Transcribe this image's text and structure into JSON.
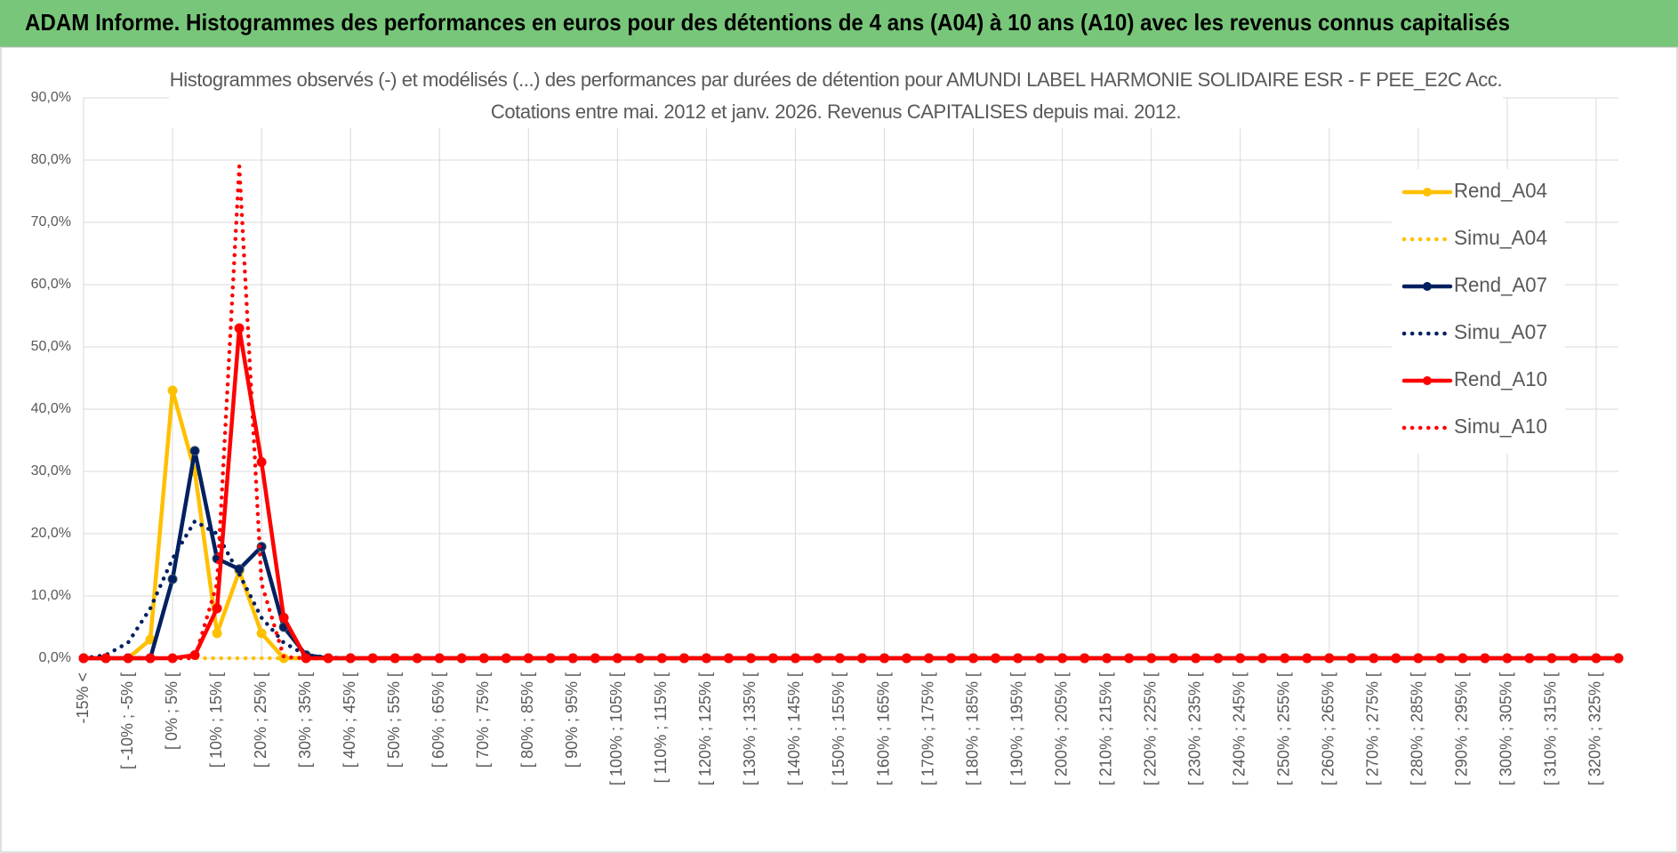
{
  "header": {
    "title": "ADAM Informe. Histogrammes des performances en euros pour des détentions de 4 ans (A04) à 10 ans (A10) avec les revenus connus capitalisés"
  },
  "chart_data": {
    "type": "line",
    "title": "Histogrammes observés (-) et modélisés (...) des performances par durées de détention pour AMUNDI LABEL HARMONIE SOLIDAIRE ESR - F PEE_E2C Acc.",
    "subtitle": "Cotations entre mai. 2012 et janv. 2026. Revenus CAPITALISES depuis mai. 2012.",
    "categories": [
      "-15% <",
      null,
      "[ -10% ; -5% [",
      null,
      "[ 0% ; 5% [",
      null,
      "[ 10% ; 15% [",
      null,
      "[ 20% ; 25% [",
      null,
      "[ 30% ; 35% [",
      null,
      "[ 40% ; 45% [",
      null,
      "[ 50% ; 55% [",
      null,
      "[ 60% ; 65% [",
      null,
      "[ 70% ; 75% [",
      null,
      "[ 80% ; 85% [",
      null,
      "[ 90% ; 95% [",
      null,
      "[ 100% ; 105% [",
      null,
      "[ 110% ; 115% [",
      null,
      "[ 120% ; 125% [",
      null,
      "[ 130% ; 135% [",
      null,
      "[ 140% ; 145% [",
      null,
      "[ 150% ; 155% [",
      null,
      "[ 160% ; 165% [",
      null,
      "[ 170% ; 175% [",
      null,
      "[ 180% ; 185% [",
      null,
      "[ 190% ; 195% [",
      null,
      "[ 200% ; 205% [",
      null,
      "[ 210% ; 215% [",
      null,
      "[ 220% ; 225% [",
      null,
      "[ 230% ; 235% [",
      null,
      "[ 240% ; 245% [",
      null,
      "[ 250% ; 255% [",
      null,
      "[ 260% ; 265% [",
      null,
      "[ 270% ; 275% [",
      null,
      "[ 280% ; 285% [",
      null,
      "[ 290% ; 295% [",
      null,
      "[ 300% ; 305% [",
      null,
      "[ 310% ; 315% [",
      null,
      "[ 320% ; 325% [",
      null
    ],
    "series": [
      {
        "name": "Rend_A04",
        "color": "#ffc000",
        "style": "solid",
        "values": [
          0,
          0,
          0,
          3,
          43,
          30,
          4,
          14,
          4,
          0,
          0,
          0,
          0,
          0,
          0,
          0,
          0,
          0,
          0,
          0,
          0,
          0,
          0,
          0,
          0,
          0,
          0,
          0,
          0,
          0,
          0,
          0,
          0,
          0,
          0,
          0,
          0,
          0,
          0,
          0,
          0,
          0,
          0,
          0,
          0,
          0,
          0,
          0,
          0,
          0,
          0,
          0,
          0,
          0,
          0,
          0,
          0,
          0,
          0,
          0,
          0,
          0,
          0,
          0,
          0,
          0,
          0,
          0,
          0,
          0
        ]
      },
      {
        "name": "Simu_A04",
        "color": "#ffc000",
        "style": "dotted",
        "values": [
          0,
          0,
          0,
          0,
          0,
          0,
          0,
          0,
          0,
          0,
          0,
          0,
          0,
          0,
          0,
          0,
          0,
          0,
          0,
          0,
          0,
          0,
          0,
          0,
          0,
          0,
          0,
          0,
          0,
          0,
          0,
          0,
          0,
          0,
          0,
          0,
          0,
          0,
          0,
          0,
          0,
          0,
          0,
          0,
          0,
          0,
          0,
          0,
          0,
          0,
          0,
          0,
          0,
          0,
          0,
          0,
          0,
          0,
          0,
          0,
          0,
          0,
          0,
          0,
          0,
          0,
          0,
          0,
          0,
          0
        ]
      },
      {
        "name": "Rend_A07",
        "color": "#002060",
        "style": "solid",
        "values": [
          0,
          0,
          0,
          0,
          12.7,
          33.3,
          16,
          14.3,
          17.9,
          5,
          0.5,
          0,
          0,
          0,
          0,
          0,
          0,
          0,
          0,
          0,
          0,
          0,
          0,
          0,
          0,
          0,
          0,
          0,
          0,
          0,
          0,
          0,
          0,
          0,
          0,
          0,
          0,
          0,
          0,
          0,
          0,
          0,
          0,
          0,
          0,
          0,
          0,
          0,
          0,
          0,
          0,
          0,
          0,
          0,
          0,
          0,
          0,
          0,
          0,
          0,
          0,
          0,
          0,
          0,
          0,
          0,
          0,
          0,
          0,
          0
        ]
      },
      {
        "name": "Simu_A07",
        "color": "#002060",
        "style": "dotted",
        "values": [
          0,
          0.5,
          2.5,
          8,
          16,
          22,
          20,
          13.5,
          6.5,
          2.5,
          0.5,
          0.1,
          0,
          0,
          0,
          0,
          0,
          0,
          0,
          0,
          0,
          0,
          0,
          0,
          0,
          0,
          0,
          0,
          0,
          0,
          0,
          0,
          0,
          0,
          0,
          0,
          0,
          0,
          0,
          0,
          0,
          0,
          0,
          0,
          0,
          0,
          0,
          0,
          0,
          0,
          0,
          0,
          0,
          0,
          0,
          0,
          0,
          0,
          0,
          0,
          0,
          0,
          0,
          0,
          0,
          0,
          0,
          0,
          0,
          0
        ]
      },
      {
        "name": "Rend_A10",
        "color": "#ff0000",
        "style": "solid",
        "values": [
          0,
          0,
          0,
          0,
          0,
          0.5,
          8,
          53,
          31.5,
          6.5,
          0,
          0,
          0,
          0,
          0,
          0,
          0,
          0,
          0,
          0,
          0,
          0,
          0,
          0,
          0,
          0,
          0,
          0,
          0,
          0,
          0,
          0,
          0,
          0,
          0,
          0,
          0,
          0,
          0,
          0,
          0,
          0,
          0,
          0,
          0,
          0,
          0,
          0,
          0,
          0,
          0,
          0,
          0,
          0,
          0,
          0,
          0,
          0,
          0,
          0,
          0,
          0,
          0,
          0,
          0,
          0,
          0,
          0,
          0,
          0
        ]
      },
      {
        "name": "Simu_A10",
        "color": "#ff0000",
        "style": "dotted",
        "values": [
          0,
          0,
          0,
          0,
          0,
          0,
          12,
          79,
          12,
          0.2,
          0,
          0,
          0,
          0,
          0,
          0,
          0,
          0,
          0,
          0,
          0,
          0,
          0,
          0,
          0,
          0,
          0,
          0,
          0,
          0,
          0,
          0,
          0,
          0,
          0,
          0,
          0,
          0,
          0,
          0,
          0,
          0,
          0,
          0,
          0,
          0,
          0,
          0,
          0,
          0,
          0,
          0,
          0,
          0,
          0,
          0,
          0,
          0,
          0,
          0,
          0,
          0,
          0,
          0,
          0,
          0,
          0,
          0,
          0,
          0
        ]
      }
    ],
    "ylim": [
      0,
      90
    ],
    "yticks": [
      {
        "value": 0,
        "label": "0,0%"
      },
      {
        "value": 10,
        "label": "10,0%"
      },
      {
        "value": 20,
        "label": "20,0%"
      },
      {
        "value": 30,
        "label": "30,0%"
      },
      {
        "value": 40,
        "label": "40,0%"
      },
      {
        "value": 50,
        "label": "50,0%"
      },
      {
        "value": 60,
        "label": "60,0%"
      },
      {
        "value": 70,
        "label": "70,0%"
      },
      {
        "value": 80,
        "label": "80,0%"
      },
      {
        "value": 90,
        "label": "90,0%"
      }
    ],
    "grid": true,
    "legend": "right"
  }
}
